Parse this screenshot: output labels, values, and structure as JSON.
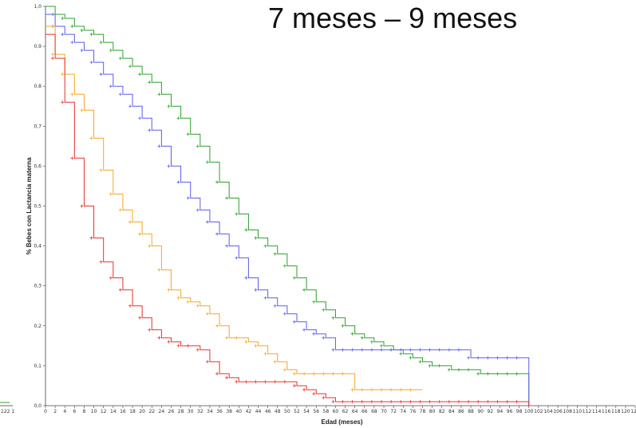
{
  "title": "7 meses – 9 meses",
  "chart_data": {
    "type": "line",
    "step": true,
    "xlabel": "Edad (meses)",
    "ylabel": "% Bebes con Lactancia materna",
    "xlim": [
      0,
      122
    ],
    "ylim": [
      0.0,
      1.0
    ],
    "x_ticks": [
      0,
      2,
      4,
      6,
      8,
      10,
      12,
      14,
      16,
      18,
      20,
      22,
      24,
      26,
      28,
      30,
      32,
      34,
      36,
      38,
      40,
      42,
      44,
      46,
      48,
      50,
      52,
      54,
      56,
      58,
      60,
      62,
      64,
      66,
      68,
      70,
      72,
      74,
      76,
      78,
      80,
      82,
      84,
      86,
      88,
      90,
      92,
      94,
      96,
      98,
      100,
      102,
      104,
      106,
      108,
      110,
      112,
      114,
      116,
      118,
      120,
      122
    ],
    "y_ticks": [
      0.0,
      0.1,
      0.2,
      0.3,
      0.4,
      0.5,
      0.6,
      0.7,
      0.8,
      0.9,
      1.0
    ],
    "y_tick_labels": [
      "0,0",
      "0,1",
      "0,2",
      "0,3",
      "0,4",
      "0,5",
      "0,6",
      "0,7",
      "0,8",
      "0,9",
      "1,0"
    ],
    "left_fragment_tick_label": "122 1",
    "grid": false,
    "series": [
      {
        "color": "#2ca02c",
        "x": [
          0,
          2,
          4,
          6,
          8,
          10,
          12,
          14,
          16,
          18,
          20,
          22,
          24,
          26,
          28,
          30,
          32,
          34,
          36,
          38,
          40,
          42,
          44,
          46,
          48,
          50,
          52,
          54,
          56,
          58,
          60,
          62,
          64,
          66,
          68,
          70,
          72,
          74,
          76,
          78,
          80,
          82,
          84,
          86,
          88,
          90,
          92,
          94,
          96,
          98,
          100
        ],
        "y": [
          1.0,
          0.98,
          0.97,
          0.95,
          0.94,
          0.93,
          0.91,
          0.89,
          0.87,
          0.85,
          0.83,
          0.81,
          0.78,
          0.75,
          0.72,
          0.68,
          0.65,
          0.61,
          0.56,
          0.52,
          0.48,
          0.44,
          0.42,
          0.4,
          0.38,
          0.35,
          0.32,
          0.29,
          0.26,
          0.24,
          0.22,
          0.2,
          0.18,
          0.17,
          0.16,
          0.15,
          0.14,
          0.13,
          0.12,
          0.11,
          0.1,
          0.1,
          0.09,
          0.09,
          0.09,
          0.08,
          0.08,
          0.08,
          0.08,
          0.08,
          0.0
        ]
      },
      {
        "color": "#5b5bf0",
        "x": [
          0,
          2,
          4,
          6,
          8,
          10,
          12,
          14,
          16,
          18,
          20,
          22,
          24,
          26,
          28,
          30,
          32,
          34,
          36,
          38,
          40,
          42,
          44,
          46,
          48,
          50,
          52,
          54,
          56,
          58,
          60,
          62,
          64,
          66,
          68,
          70,
          72,
          74,
          76,
          78,
          80,
          82,
          84,
          86,
          88,
          90,
          92,
          94,
          96,
          98,
          100
        ],
        "y": [
          0.98,
          0.95,
          0.93,
          0.91,
          0.89,
          0.86,
          0.83,
          0.8,
          0.78,
          0.75,
          0.72,
          0.69,
          0.65,
          0.6,
          0.56,
          0.52,
          0.49,
          0.46,
          0.43,
          0.4,
          0.37,
          0.32,
          0.29,
          0.27,
          0.25,
          0.23,
          0.21,
          0.19,
          0.18,
          0.17,
          0.14,
          0.14,
          0.14,
          0.14,
          0.14,
          0.14,
          0.14,
          0.14,
          0.14,
          0.14,
          0.14,
          0.14,
          0.14,
          0.14,
          0.12,
          0.12,
          0.12,
          0.12,
          0.12,
          0.12,
          0.0
        ]
      },
      {
        "color": "#f5a623",
        "x": [
          0,
          2,
          4,
          6,
          8,
          10,
          12,
          14,
          16,
          18,
          20,
          22,
          24,
          26,
          28,
          30,
          32,
          34,
          36,
          38,
          40,
          42,
          44,
          46,
          48,
          50,
          52,
          54,
          56,
          58,
          60,
          62,
          64,
          66,
          68,
          70,
          72,
          74,
          76,
          78
        ],
        "y": [
          0.95,
          0.88,
          0.83,
          0.78,
          0.74,
          0.67,
          0.59,
          0.53,
          0.49,
          0.46,
          0.43,
          0.4,
          0.34,
          0.29,
          0.27,
          0.26,
          0.25,
          0.23,
          0.2,
          0.17,
          0.17,
          0.16,
          0.15,
          0.13,
          0.11,
          0.09,
          0.08,
          0.08,
          0.08,
          0.08,
          0.08,
          0.08,
          0.04,
          0.04,
          0.04,
          0.04,
          0.04,
          0.04,
          0.04,
          0.04
        ]
      },
      {
        "color": "#e8302c",
        "x": [
          0,
          2,
          4,
          6,
          8,
          10,
          12,
          14,
          16,
          18,
          20,
          22,
          24,
          26,
          28,
          30,
          32,
          34,
          36,
          38,
          40,
          42,
          44,
          46,
          48,
          50,
          52,
          54,
          56,
          58,
          60,
          62,
          64,
          66,
          68,
          70,
          72,
          74,
          76,
          78,
          80,
          82,
          84,
          86,
          88,
          90,
          92,
          94,
          96,
          98,
          100
        ],
        "y": [
          0.93,
          0.87,
          0.76,
          0.62,
          0.5,
          0.42,
          0.36,
          0.32,
          0.29,
          0.25,
          0.22,
          0.19,
          0.17,
          0.16,
          0.15,
          0.15,
          0.14,
          0.11,
          0.08,
          0.07,
          0.06,
          0.06,
          0.06,
          0.06,
          0.06,
          0.06,
          0.05,
          0.04,
          0.03,
          0.02,
          0.01,
          0.01,
          0.01,
          0.01,
          0.01,
          0.01,
          0.01,
          0.01,
          0.01,
          0.01,
          0.01,
          0.01,
          0.01,
          0.01,
          0.01,
          0.01,
          0.01,
          0.01,
          0.01,
          0.01,
          0.0
        ]
      }
    ]
  }
}
